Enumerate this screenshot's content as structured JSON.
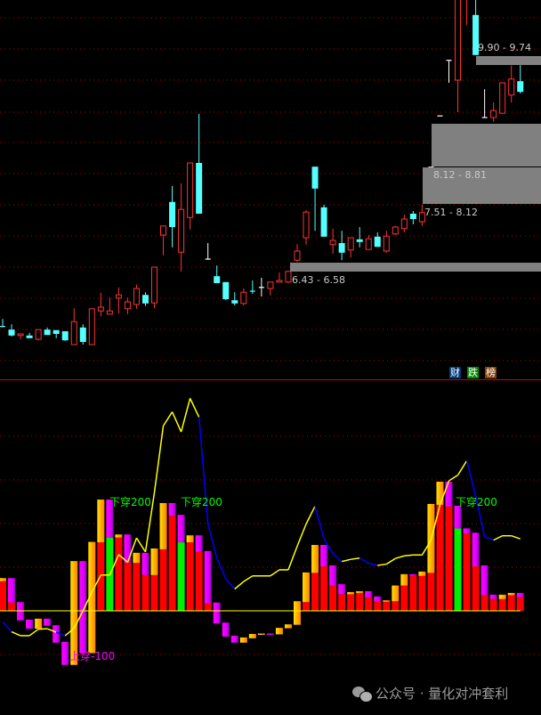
{
  "colors": {
    "up": "#ff3232",
    "down": "#54ffff",
    "doji": "#ffffff",
    "grid": "#c00000",
    "zone": "#808080",
    "gold": "#ffc000",
    "magenta": "#ff00ff",
    "red_bar": "#ff0000",
    "green_bar": "#00ee00",
    "line_up": "#ffff00",
    "line_down": "#0000ff",
    "zero_line": "#ffff00",
    "signal_down": "#00ff00",
    "signal_up": "#ff00ff"
  },
  "zones": [
    {
      "label": "9.90 - 9.74"
    },
    {
      "label": "8.12 - 8.81"
    },
    {
      "label": "7.51 - 8.12"
    },
    {
      "label": "6.43 - 6.58"
    }
  ],
  "badges": [
    {
      "label": "财",
      "icon": "finance-icon",
      "color": "#003a7a"
    },
    {
      "label": "跌",
      "icon": "fall-icon",
      "color": "#008a00"
    },
    {
      "label": "榜",
      "icon": "ranking-icon",
      "color": "#8a4000"
    }
  ],
  "signals": {
    "cross_down": "下穿200",
    "cross_up": "上穿-100"
  },
  "watermark": {
    "icon": "wechat-icon",
    "text": "公众号 · 量化对冲套利"
  },
  "chart_data": [
    {
      "type": "candlestick",
      "grid": true,
      "fields": [
        "open",
        "high",
        "low",
        "close"
      ],
      "candles": [
        [
          5.39,
          5.53,
          5.37,
          5.38
        ],
        [
          5.33,
          5.43,
          5.2,
          5.22
        ],
        [
          5.22,
          5.25,
          5.15,
          5.25
        ],
        [
          5.22,
          5.27,
          5.17,
          5.17
        ],
        [
          5.15,
          5.33,
          5.13,
          5.33
        ],
        [
          5.33,
          5.37,
          5.23,
          5.23
        ],
        [
          5.32,
          5.32,
          5.17,
          5.25
        ],
        [
          5.3,
          5.3,
          5.12,
          5.13
        ],
        [
          5.05,
          5.73,
          5.05,
          5.48
        ],
        [
          5.37,
          5.43,
          5.05,
          5.1
        ],
        [
          5.05,
          5.72,
          5.05,
          5.72
        ],
        [
          5.68,
          6.02,
          5.58,
          5.75
        ],
        [
          5.62,
          5.93,
          5.62,
          5.68
        ],
        [
          5.92,
          6.12,
          5.63,
          5.98
        ],
        [
          5.72,
          5.93,
          5.62,
          5.85
        ],
        [
          5.8,
          6.17,
          5.72,
          6.1
        ],
        [
          5.98,
          6.03,
          5.77,
          5.82
        ],
        [
          5.83,
          6.5,
          5.73,
          6.5
        ],
        [
          7.1,
          7.27,
          6.72,
          7.27
        ],
        [
          7.72,
          8.02,
          6.87,
          7.25
        ],
        [
          6.78,
          8.07,
          6.42,
          7.58
        ],
        [
          7.43,
          8.45,
          7.2,
          8.45
        ],
        [
          8.45,
          9.37,
          7.5,
          7.5
        ],
        [
          6.65,
          6.95,
          6.65,
          6.65
        ],
        [
          6.33,
          6.53,
          6.2,
          6.2
        ],
        [
          6.22,
          6.22,
          5.88,
          5.9
        ],
        [
          5.88,
          6.03,
          5.78,
          5.82
        ],
        [
          5.82,
          6.1,
          5.78,
          6.03
        ],
        [
          6.05,
          6.25,
          6.0,
          6.04
        ],
        [
          6.12,
          6.3,
          5.95,
          6.12
        ],
        [
          6.1,
          6.22,
          5.97,
          6.22
        ],
        [
          6.22,
          6.4,
          6.22,
          6.25
        ],
        [
          6.22,
          6.42,
          6.2,
          6.42
        ],
        [
          6.63,
          6.93,
          6.6,
          6.8
        ],
        [
          7.05,
          7.57,
          6.92,
          7.53
        ],
        [
          8.38,
          8.38,
          7.18,
          7.97
        ],
        [
          7.62,
          7.67,
          7.07,
          7.07
        ],
        [
          6.92,
          7.22,
          6.75,
          7.0
        ],
        [
          6.95,
          7.18,
          6.63,
          6.77
        ],
        [
          6.82,
          7.05,
          6.68,
          7.05
        ],
        [
          7.02,
          7.25,
          6.87,
          6.97
        ],
        [
          6.83,
          7.1,
          6.83,
          7.03
        ],
        [
          7.07,
          7.15,
          6.88,
          6.88
        ],
        [
          6.8,
          7.18,
          6.77,
          7.08
        ],
        [
          7.12,
          7.27,
          7.1,
          7.25
        ],
        [
          7.22,
          7.48,
          7.15,
          7.4
        ],
        [
          7.5,
          7.55,
          7.3,
          7.4
        ],
        [
          7.35,
          7.67,
          7.27,
          7.52
        ],
        [
          8.37,
          8.37,
          8.37,
          8.37
        ],
        [
          9.33,
          9.33,
          9.33,
          9.33
        ],
        [
          10.37,
          10.37,
          9.95,
          10.37
        ],
        [
          10.0,
          11.6,
          9.4,
          11.6
        ],
        [
          11.6,
          12.2,
          11.03,
          12.0
        ],
        [
          11.22,
          11.6,
          10.47,
          10.47
        ],
        [
          9.3,
          9.83,
          9.3,
          9.3
        ],
        [
          9.3,
          9.58,
          9.22,
          9.43
        ],
        [
          9.38,
          9.95,
          9.38,
          9.95
        ],
        [
          9.72,
          10.27,
          9.58,
          10.02
        ],
        [
          9.98,
          10.28,
          9.75,
          9.78
        ]
      ]
    },
    {
      "type": "bar+line",
      "grid": true,
      "ylim": [
        -130,
        470
      ],
      "gridlines": [
        -100,
        0,
        100,
        200,
        300,
        400
      ],
      "bar_fields": [
        "segment_from",
        "segment_to",
        "segment_color",
        "column_value",
        "column_color"
      ],
      "bars": [
        [
          68,
          75,
          "gold",
          68,
          "red"
        ],
        [
          19,
          75,
          "magenta",
          19,
          "red"
        ],
        [
          -22,
          20,
          "magenta",
          0,
          "red"
        ],
        [
          -41,
          -20,
          "magenta",
          0,
          "red"
        ],
        [
          -41,
          -18,
          "gold",
          0,
          "red"
        ],
        [
          -34,
          -18,
          "magenta",
          0,
          "red"
        ],
        [
          -73,
          -33,
          "magenta",
          0,
          "red"
        ],
        [
          -124,
          -71,
          "magenta",
          0,
          "red"
        ],
        [
          -124,
          114,
          "gold",
          0,
          "red"
        ],
        [
          -97,
          114,
          "magenta",
          0,
          "red"
        ],
        [
          -97,
          158,
          "gold",
          0,
          "red"
        ],
        [
          157,
          255,
          "gold",
          157,
          "red"
        ],
        [
          168,
          255,
          "magenta",
          168,
          "green"
        ],
        [
          168,
          175,
          "gold",
          168,
          "red"
        ],
        [
          110,
          175,
          "magenta",
          110,
          "red"
        ],
        [
          110,
          133,
          "gold",
          110,
          "red"
        ],
        [
          82,
          133,
          "magenta",
          82,
          "red"
        ],
        [
          82,
          143,
          "gold",
          82,
          "red"
        ],
        [
          141,
          247,
          "gold",
          141,
          "red"
        ],
        [
          218,
          247,
          "magenta",
          218,
          "red"
        ],
        [
          157,
          220,
          "magenta",
          157,
          "green"
        ],
        [
          157,
          173,
          "gold",
          157,
          "red"
        ],
        [
          135,
          173,
          "magenta",
          135,
          "red"
        ],
        [
          17,
          137,
          "magenta",
          17,
          "red"
        ],
        [
          -29,
          19,
          "magenta",
          0,
          "red"
        ],
        [
          -59,
          -27,
          "magenta",
          0,
          "red"
        ],
        [
          -73,
          -57,
          "magenta",
          0,
          "red"
        ],
        [
          -73,
          -61,
          "gold",
          0,
          "red"
        ],
        [
          -63,
          -53,
          "gold",
          0,
          "red"
        ],
        [
          -54,
          -52,
          "gold",
          0,
          "red"
        ],
        [
          -54,
          -52,
          "magenta",
          0,
          "red"
        ],
        [
          -54,
          -39,
          "gold",
          0,
          "red"
        ],
        [
          -40,
          -31,
          "gold",
          0,
          "red"
        ],
        [
          -32,
          22,
          "gold",
          0,
          "red"
        ],
        [
          20,
          88,
          "gold",
          20,
          "red"
        ],
        [
          87,
          151,
          "gold",
          87,
          "red"
        ],
        [
          102,
          151,
          "magenta",
          102,
          "red"
        ],
        [
          58,
          104,
          "magenta",
          58,
          "red"
        ],
        [
          38,
          61,
          "magenta",
          38,
          "red"
        ],
        [
          38,
          43,
          "gold",
          38,
          "red"
        ],
        [
          41,
          45,
          "gold",
          41,
          "red"
        ],
        [
          31,
          45,
          "magenta",
          31,
          "red"
        ],
        [
          21,
          33,
          "magenta",
          21,
          "red"
        ],
        [
          21,
          24,
          "gold",
          21,
          "red"
        ],
        [
          22,
          58,
          "gold",
          22,
          "red"
        ],
        [
          58,
          84,
          "gold",
          58,
          "red"
        ],
        [
          80,
          84,
          "magenta",
          80,
          "red"
        ],
        [
          80,
          90,
          "gold",
          80,
          "red"
        ],
        [
          87,
          245,
          "gold",
          87,
          "red"
        ],
        [
          243,
          296,
          "gold",
          243,
          "red"
        ],
        [
          239,
          296,
          "magenta",
          239,
          "red"
        ],
        [
          189,
          241,
          "magenta",
          189,
          "green"
        ],
        [
          177,
          189,
          "magenta",
          177,
          "red"
        ],
        [
          102,
          179,
          "magenta",
          102,
          "red"
        ],
        [
          36,
          104,
          "magenta",
          36,
          "red"
        ],
        [
          27,
          37,
          "magenta",
          27,
          "red"
        ],
        [
          27,
          37,
          "gold",
          27,
          "red"
        ],
        [
          36,
          41,
          "gold",
          36,
          "red"
        ],
        [
          31,
          41,
          "magenta",
          31,
          "red"
        ]
      ],
      "line": [
        -25,
        -48,
        -57,
        -57,
        -42,
        -41,
        -49,
        -57,
        -40,
        0,
        43,
        82,
        82,
        129,
        111,
        167,
        135,
        271,
        424,
        456,
        410,
        487,
        444,
        199,
        121,
        73,
        50,
        67,
        80,
        80,
        80,
        94,
        94,
        148,
        199,
        240,
        165,
        131,
        113,
        118,
        121,
        109,
        104,
        107,
        120,
        126,
        128,
        128,
        162,
        243,
        298,
        311,
        344,
        264,
        170,
        162,
        172,
        172,
        165
      ],
      "signals": [
        {
          "index": 12,
          "type": "cross_down",
          "value": 240
        },
        {
          "index": 20,
          "type": "cross_down",
          "value": 240
        },
        {
          "index": 51,
          "type": "cross_down",
          "value": 240
        },
        {
          "index": 8,
          "type": "cross_up",
          "value": -100
        }
      ]
    }
  ]
}
